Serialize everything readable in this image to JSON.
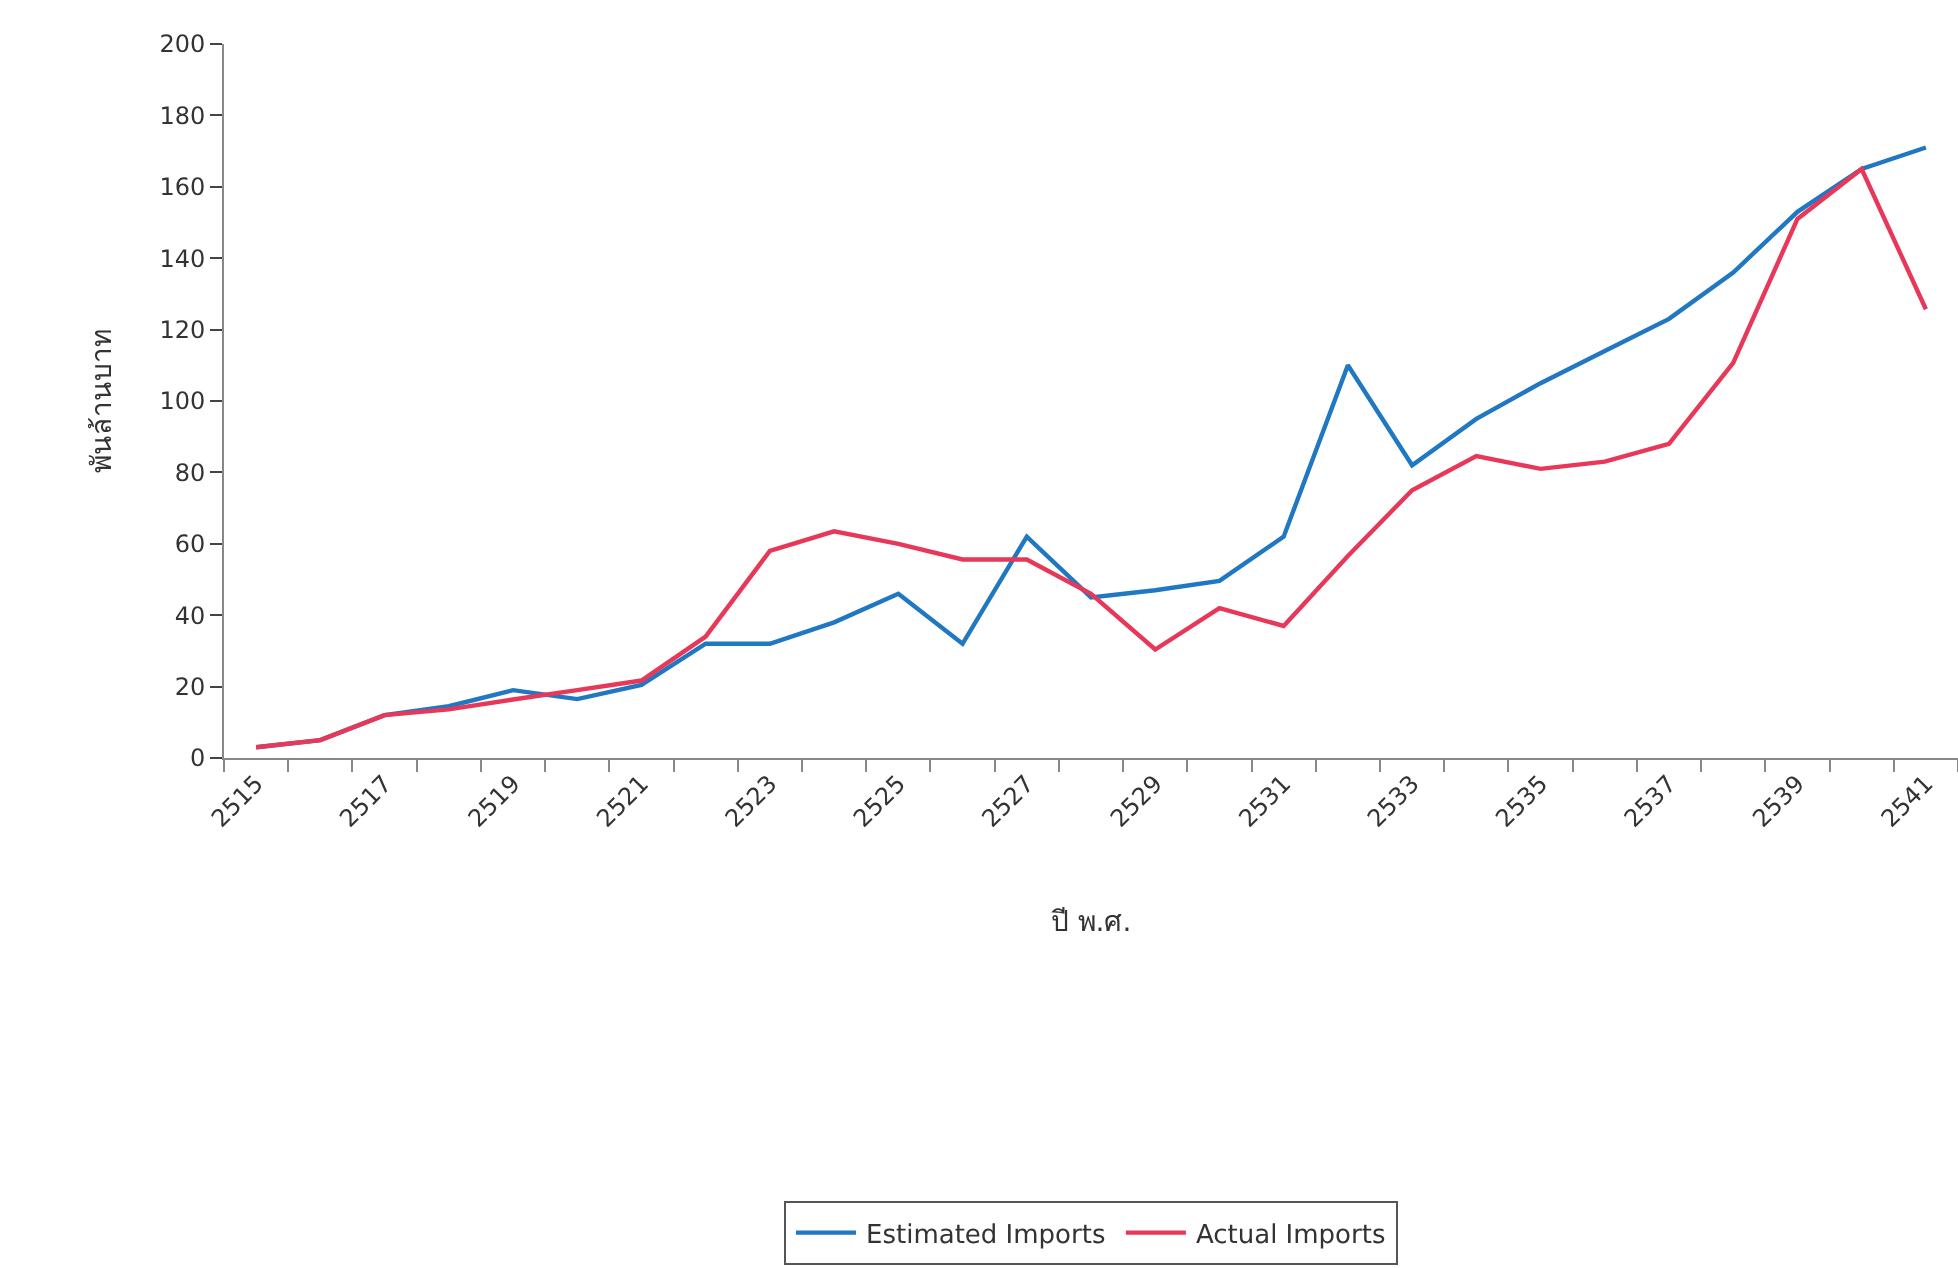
{
  "chart_data": {
    "type": "line",
    "xlabel": "ปี พ.ศ.",
    "ylabel": "พันล้านบาท",
    "categories": [
      "2515",
      null,
      "2517",
      null,
      "2519",
      null,
      "2521",
      null,
      "2523",
      null,
      "2525",
      null,
      "2527",
      null,
      "2529",
      null,
      "2531",
      null,
      "2533",
      null,
      "2535",
      null,
      "2537",
      null,
      "2539",
      null,
      "2541"
    ],
    "series": [
      {
        "name": "Estimated Imports",
        "color": "#1f78c1",
        "values": [
          3,
          5,
          12,
          14.5,
          19,
          16.5,
          20.5,
          32,
          32,
          38,
          46,
          32,
          62,
          45,
          47,
          49.6,
          62,
          110,
          82,
          95,
          105,
          114,
          123,
          136,
          153,
          165,
          171
        ]
      },
      {
        "name": "Actual Imports",
        "color": "#e8385a",
        "values": [
          3,
          5,
          12,
          13.6,
          16.4,
          19,
          21.7,
          34,
          58,
          63.5,
          60,
          55.6,
          55.6,
          46,
          30.4,
          42,
          37,
          56.6,
          75,
          84.6,
          81,
          83,
          88,
          110.7,
          151,
          165,
          125.7
        ]
      }
    ],
    "ylim": [
      0,
      200
    ],
    "yticks": [
      0,
      20,
      40,
      60,
      80,
      100,
      120,
      140,
      160,
      180,
      200
    ],
    "legend": "bottom",
    "marker": "none",
    "line_style": "solid"
  }
}
